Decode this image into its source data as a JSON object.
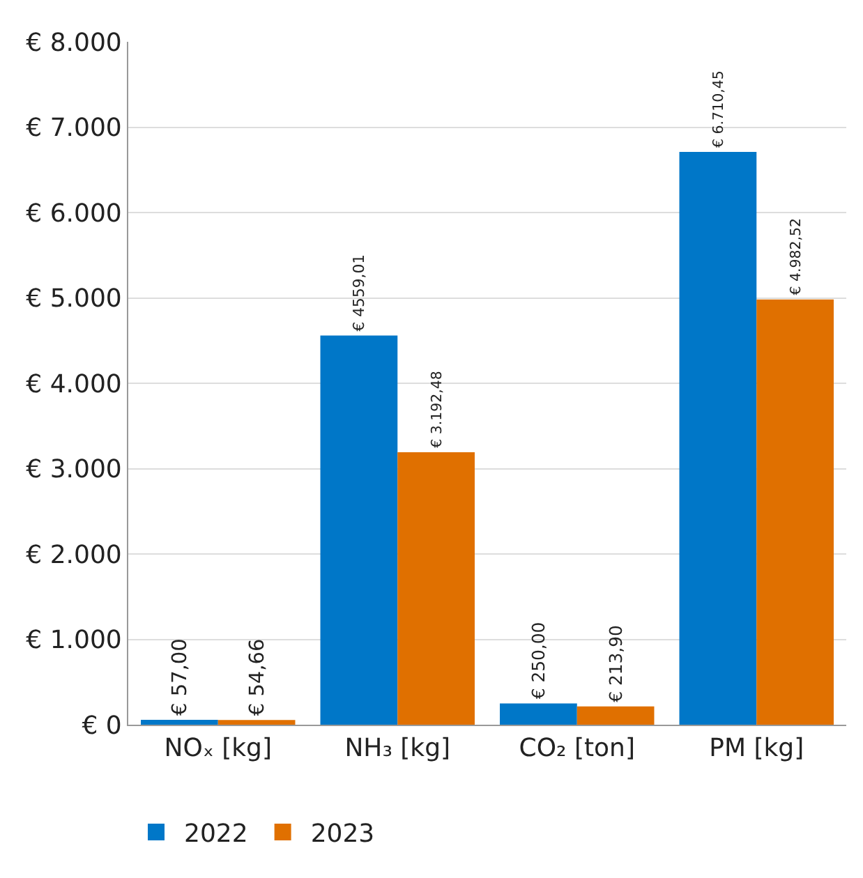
{
  "chart_data": {
    "type": "bar",
    "categories": [
      "NOₓ [kg]",
      "NH₃ [kg]",
      "CO₂ [ton]",
      "PM [kg]"
    ],
    "series": [
      {
        "name": "2022",
        "color": "#0077c8",
        "values": [
          57,
          4559.01,
          250,
          6710.45
        ],
        "value_labels": [
          "€ 57,00",
          "€ 4559,01",
          "€ 250,00",
          "€ 6.710,45"
        ]
      },
      {
        "name": "2023",
        "color": "#e07000",
        "values": [
          54.66,
          3192.48,
          213.9,
          4982.52
        ],
        "value_labels": [
          "€ 54,66",
          "€ 3.192,48",
          "€ 213,90",
          "€ 4.982,52"
        ]
      }
    ],
    "ylim": [
      0,
      8000
    ],
    "yticks": [
      {
        "value": 0,
        "label": "€ 0"
      },
      {
        "value": 1000,
        "label": "€ 1.000"
      },
      {
        "value": 2000,
        "label": "€ 2.000"
      },
      {
        "value": 3000,
        "label": "€ 3.000"
      },
      {
        "value": 4000,
        "label": "€ 4.000"
      },
      {
        "value": 5000,
        "label": "€ 5.000"
      },
      {
        "value": 6000,
        "label": "€ 6.000"
      },
      {
        "value": 7000,
        "label": "€ 7.000"
      },
      {
        "value": 8000,
        "label": "€ 8.000"
      }
    ],
    "grid": "y",
    "legend": "bottom left"
  }
}
